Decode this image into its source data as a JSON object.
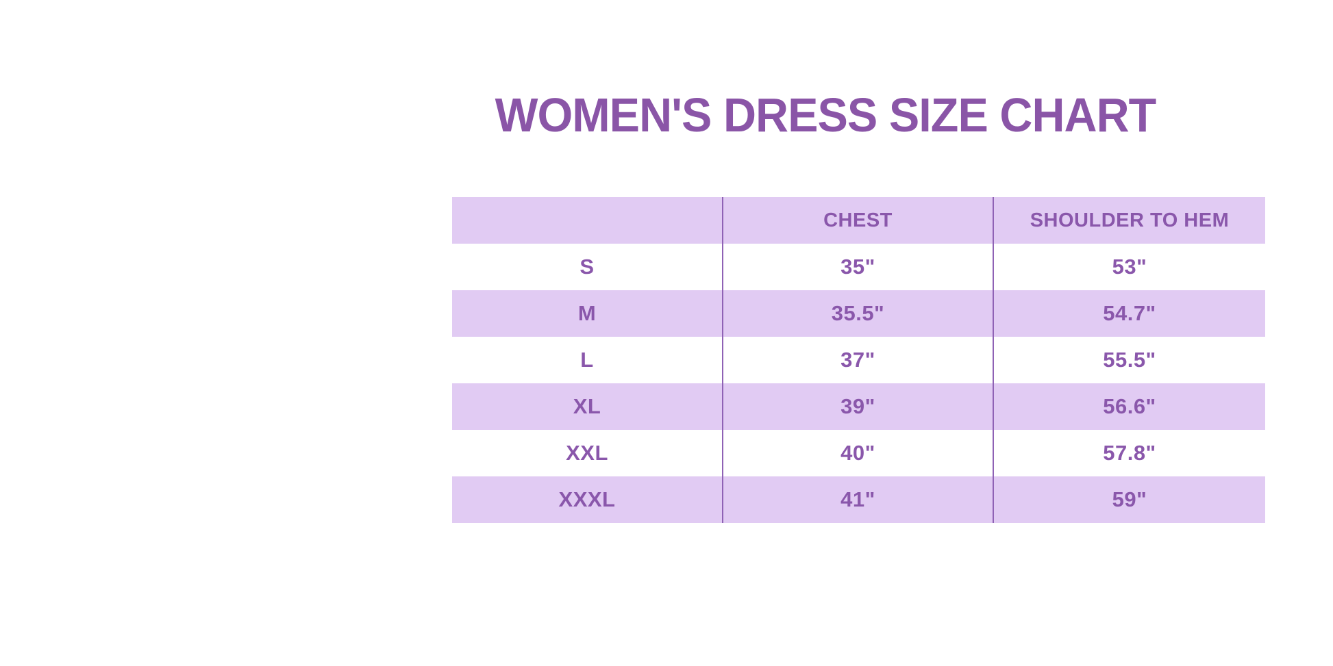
{
  "page": {
    "title": "WOMEN'S DRESS SIZE CHART"
  },
  "colors": {
    "title_text": "#8a55a7",
    "table_text": "#8a57ab",
    "row_lavender": "#e1cbf3",
    "row_white": "#ffffff",
    "column_divider": "#8f62b5",
    "background": "#ffffff"
  },
  "chart_data": {
    "type": "table",
    "title": "WOMEN'S DRESS SIZE CHART",
    "columns": [
      "",
      "CHEST",
      "SHOULDER TO HEM"
    ],
    "rows": [
      [
        "S",
        "35\"",
        "53\""
      ],
      [
        "M",
        "35.5\"",
        "54.7\""
      ],
      [
        "L",
        "37\"",
        "55.5\""
      ],
      [
        "XL",
        "39\"",
        "56.6\""
      ],
      [
        "XXL",
        "40\"",
        "57.8\""
      ],
      [
        "XXXL",
        "41\"",
        "59\""
      ]
    ],
    "layout": {
      "row_striping": "alternating lavender and white, header lavender",
      "grid": "vertical column dividers only",
      "legend": "none"
    }
  }
}
